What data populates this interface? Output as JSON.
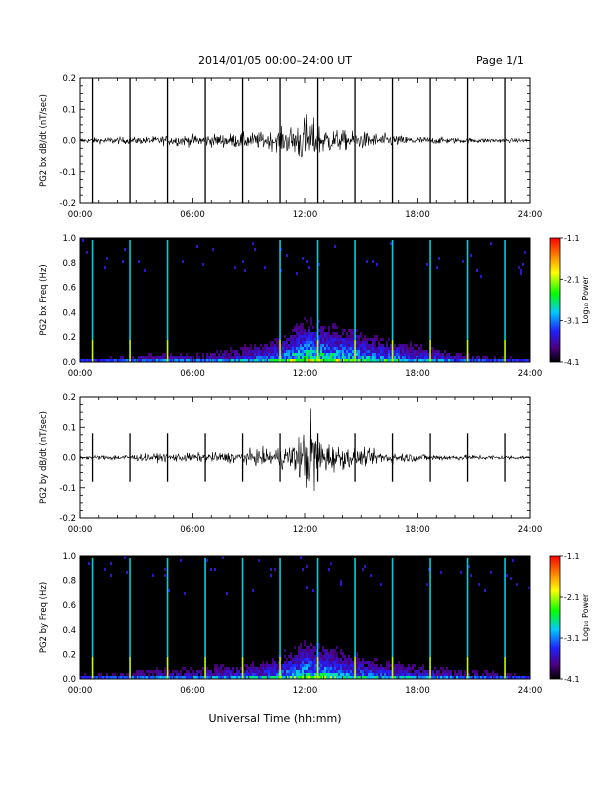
{
  "header": {
    "title": "2014/01/05  00:00–24:00 UT",
    "page_label": "Page 1/1"
  },
  "footer": {
    "xlabel": "Universal Time (hh:mm)"
  },
  "chart_data": [
    {
      "type": "line",
      "ylabel": "PG2 bx dB/dt (nT/sec)",
      "xlim": [
        0,
        24
      ],
      "ylim": [
        -0.2,
        0.2
      ],
      "x_ticks": [
        0,
        6,
        12,
        18,
        24
      ],
      "x_tick_labels": [
        "00:00",
        "06:00",
        "12:00",
        "18:00",
        "24:00"
      ],
      "y_ticks": [
        -0.2,
        -0.1,
        0.0,
        0.1,
        0.2
      ],
      "y_tick_labels": [
        "-0.2",
        "-0.1",
        "0.0",
        "0.1",
        "0.2"
      ],
      "spike_times": [
        0.67,
        2.67,
        4.67,
        6.67,
        8.67,
        10.67,
        12.67,
        14.67,
        16.67,
        18.67,
        20.67,
        22.67
      ],
      "spike_range": [
        -0.2,
        0.2
      ],
      "envelope": {
        "x": [
          0,
          1,
          2,
          3,
          4,
          5,
          6,
          7,
          8,
          9,
          10,
          10.5,
          11,
          11.5,
          12,
          12.5,
          13,
          13.5,
          14,
          15,
          16,
          17,
          18,
          20,
          22,
          24
        ],
        "amplitude": [
          0.008,
          0.01,
          0.012,
          0.012,
          0.015,
          0.018,
          0.02,
          0.022,
          0.025,
          0.028,
          0.03,
          0.035,
          0.045,
          0.06,
          0.09,
          0.07,
          0.05,
          0.04,
          0.035,
          0.03,
          0.025,
          0.018,
          0.014,
          0.01,
          0.008,
          0.006
        ]
      },
      "line_color": "#000000"
    },
    {
      "type": "heatmap",
      "ylabel": "PG2 bx Freq (Hz)",
      "xlim": [
        0,
        24
      ],
      "ylim": [
        0.0,
        1.0
      ],
      "x_ticks": [
        0,
        6,
        12,
        18,
        24
      ],
      "x_tick_labels": [
        "00:00",
        "06:00",
        "12:00",
        "18:00",
        "24:00"
      ],
      "y_ticks": [
        0.0,
        0.2,
        0.4,
        0.6,
        0.8,
        1.0
      ],
      "y_tick_labels": [
        "0.0",
        "0.2",
        "0.4",
        "0.6",
        "0.8",
        "1.0"
      ],
      "colorbar": {
        "label": "Log₁₀ Power",
        "range": [
          -4.1,
          -1.1
        ],
        "ticks": [
          -1.1,
          -2.1,
          -3.1,
          -4.1
        ],
        "tick_labels": [
          "-1.1",
          "-2.1",
          "-3.1",
          "-4.1"
        ]
      },
      "spike_times": [
        0.67,
        2.67,
        4.67,
        10.67,
        12.67,
        14.67,
        16.67,
        18.67,
        20.67,
        22.67
      ],
      "activity": {
        "x": [
          0,
          2,
          4,
          6,
          8,
          10,
          11,
          12,
          13,
          14,
          15,
          16,
          18,
          20,
          22,
          24
        ],
        "level": [
          0.2,
          0.25,
          0.3,
          0.3,
          0.35,
          0.45,
          0.55,
          0.7,
          0.65,
          0.6,
          0.55,
          0.5,
          0.4,
          0.3,
          0.25,
          0.2
        ],
        "height": [
          0.08,
          0.1,
          0.12,
          0.12,
          0.15,
          0.2,
          0.25,
          0.32,
          0.3,
          0.28,
          0.25,
          0.22,
          0.18,
          0.14,
          0.1,
          0.08
        ]
      },
      "background_color": "#000000"
    },
    {
      "type": "line",
      "ylabel": "PG2 by dB/dt (nT/sec)",
      "xlim": [
        0,
        24
      ],
      "ylim": [
        -0.2,
        0.2
      ],
      "x_ticks": [
        0,
        6,
        12,
        18,
        24
      ],
      "x_tick_labels": [
        "00:00",
        "06:00",
        "12:00",
        "18:00",
        "24:00"
      ],
      "y_ticks": [
        -0.2,
        -0.1,
        0.0,
        0.1,
        0.2
      ],
      "y_tick_labels": [
        "-0.2",
        "-0.1",
        "0.0",
        "0.1",
        "0.2"
      ],
      "spike_times": [
        0.67,
        2.67,
        4.67,
        6.67,
        8.67,
        10.67,
        12.67,
        14.67,
        16.67,
        18.67,
        20.67,
        22.67
      ],
      "spike_range": [
        -0.08,
        0.08
      ],
      "envelope": {
        "x": [
          0,
          1,
          2,
          3,
          4,
          5,
          6,
          7,
          8,
          9,
          10,
          10.5,
          11,
          11.5,
          12,
          12.3,
          12.6,
          13,
          13.5,
          14,
          15,
          16,
          17,
          18,
          20,
          22,
          24
        ],
        "amplitude": [
          0.006,
          0.008,
          0.01,
          0.012,
          0.014,
          0.015,
          0.016,
          0.018,
          0.02,
          0.025,
          0.03,
          0.035,
          0.045,
          0.06,
          0.1,
          0.17,
          0.09,
          0.06,
          0.05,
          0.04,
          0.03,
          0.025,
          0.018,
          0.014,
          0.01,
          0.008,
          0.006
        ]
      },
      "line_color": "#000000"
    },
    {
      "type": "heatmap",
      "ylabel": "PG2 by Freq (Hz)",
      "xlim": [
        0,
        24
      ],
      "ylim": [
        0.0,
        1.0
      ],
      "x_ticks": [
        0,
        6,
        12,
        18,
        24
      ],
      "x_tick_labels": [
        "00:00",
        "06:00",
        "12:00",
        "18:00",
        "24:00"
      ],
      "y_ticks": [
        0.0,
        0.2,
        0.4,
        0.6,
        0.8,
        1.0
      ],
      "y_tick_labels": [
        "0.0",
        "0.2",
        "0.4",
        "0.6",
        "0.8",
        "1.0"
      ],
      "colorbar": {
        "label": "Log₁₀ Power",
        "range": [
          -4.1,
          -1.1
        ],
        "ticks": [
          -1.1,
          -2.1,
          -3.1,
          -4.1
        ],
        "tick_labels": [
          "-1.1",
          "-2.1",
          "-3.1",
          "-4.1"
        ]
      },
      "spike_times": [
        0.67,
        2.67,
        4.67,
        6.67,
        8.67,
        10.67,
        12.67,
        14.67,
        16.67,
        18.67,
        20.67,
        22.67
      ],
      "activity": {
        "x": [
          0,
          2,
          4,
          6,
          8,
          10,
          11,
          12,
          13,
          14,
          15,
          16,
          18,
          20,
          22,
          24
        ],
        "level": [
          0.2,
          0.25,
          0.3,
          0.3,
          0.35,
          0.4,
          0.5,
          0.6,
          0.55,
          0.5,
          0.45,
          0.4,
          0.35,
          0.3,
          0.25,
          0.2
        ],
        "height": [
          0.1,
          0.12,
          0.14,
          0.15,
          0.17,
          0.2,
          0.25,
          0.3,
          0.3,
          0.25,
          0.22,
          0.2,
          0.17,
          0.14,
          0.12,
          0.1
        ]
      },
      "background_color": "#000000"
    }
  ]
}
